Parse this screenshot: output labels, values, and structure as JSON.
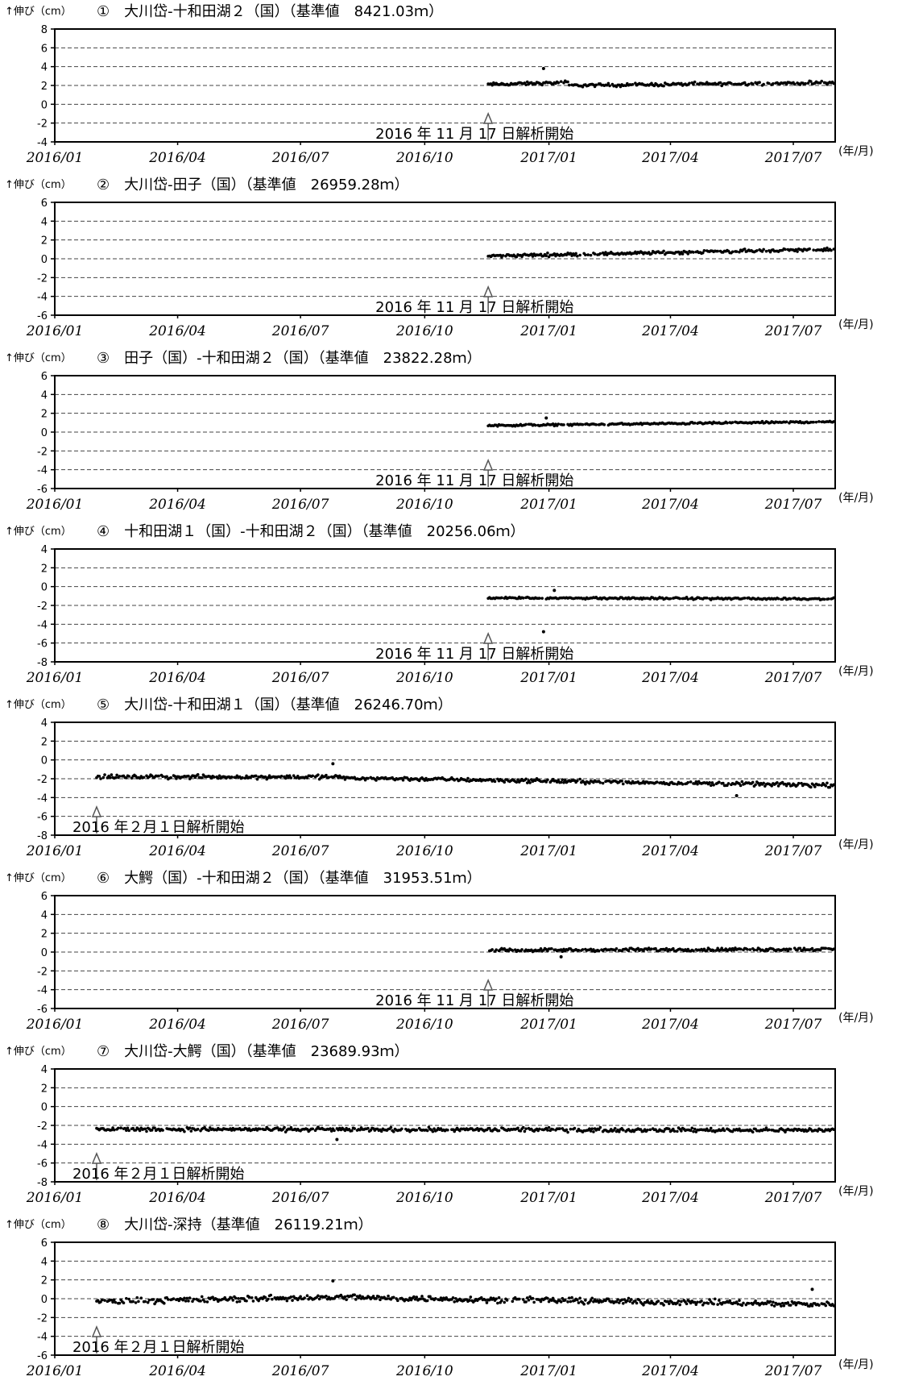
{
  "y_axis_label": "↑伸び（cm）",
  "x_unit_label": "(年/月)",
  "x_tick_labels": [
    "2016/01",
    "2016/04",
    "2016/07",
    "2016/10",
    "2017/01",
    "2017/04",
    "2017/07"
  ],
  "chart_data": [
    {
      "type": "scatter",
      "title": "①　大川岱-十和田湖２（国）（基準値　8421.03ｍ）",
      "ylabel": "↑伸び（cm）",
      "xlabel": "(年/月)",
      "xlim": [
        "2016-01-01",
        "2017-08-01"
      ],
      "ylim": [
        -4,
        8
      ],
      "yticks": [
        -4,
        -2,
        0,
        2,
        4,
        6,
        8
      ],
      "grid": "dashed horizontal",
      "annotation": {
        "text": "2016 年 11 月 17 日解析開始",
        "x": "2016-11-17"
      },
      "series": [
        {
          "start": "2016-11-17",
          "end": "2017-07-31",
          "segments": [
            {
              "from": "2016-11-17",
              "to": "2017-01-15",
              "y_start": 2.1,
              "y_end": 2.3
            },
            {
              "from": "2017-01-15",
              "to": "2017-07-31",
              "y_start": 2.0,
              "y_end": 2.3
            }
          ],
          "scatter": 0.25,
          "outliers": [
            {
              "x": "2016-12-28",
              "y": 3.8
            }
          ]
        }
      ]
    },
    {
      "type": "scatter",
      "title": "②　大川岱-田子（国）（基準値　26959.28ｍ）",
      "ylabel": "↑伸び（cm）",
      "xlabel": "(年/月)",
      "xlim": [
        "2016-01-01",
        "2017-08-01"
      ],
      "ylim": [
        -6,
        6
      ],
      "yticks": [
        -6,
        -4,
        -2,
        0,
        2,
        4,
        6
      ],
      "grid": "dashed horizontal",
      "annotation": {
        "text": "2016 年 11 月 17 日解析開始",
        "x": "2016-11-17"
      },
      "series": [
        {
          "start": "2016-11-17",
          "end": "2017-07-31",
          "segments": [
            {
              "from": "2016-11-17",
              "to": "2017-07-31",
              "y_start": 0.3,
              "y_end": 1.0
            }
          ],
          "scatter": 0.25,
          "outliers": []
        }
      ]
    },
    {
      "type": "scatter",
      "title": "③　田子（国）-十和田湖２（国）（基準値　23822.28ｍ）",
      "ylabel": "↑伸び（cm）",
      "xlabel": "(年/月)",
      "xlim": [
        "2016-01-01",
        "2017-08-01"
      ],
      "ylim": [
        -6,
        6
      ],
      "yticks": [
        -6,
        -4,
        -2,
        0,
        2,
        4,
        6
      ],
      "grid": "dashed horizontal",
      "annotation": {
        "text": "2016 年 11 月 17 日解析開始",
        "x": "2016-11-17"
      },
      "series": [
        {
          "start": "2016-11-17",
          "end": "2017-07-31",
          "segments": [
            {
              "from": "2016-11-17",
              "to": "2017-07-31",
              "y_start": 0.7,
              "y_end": 1.1
            }
          ],
          "scatter": 0.15,
          "outliers": [
            {
              "x": "2016-12-30",
              "y": 1.5
            }
          ]
        }
      ]
    },
    {
      "type": "scatter",
      "title": "④　十和田湖１（国）-十和田湖２（国）（基準値　20256.06ｍ）",
      "ylabel": "↑伸び（cm）",
      "xlabel": "(年/月)",
      "xlim": [
        "2016-01-01",
        "2017-08-01"
      ],
      "ylim": [
        -8,
        4
      ],
      "yticks": [
        -8,
        -6,
        -4,
        -2,
        0,
        2,
        4
      ],
      "grid": "dashed horizontal",
      "annotation": {
        "text": "2016 年 11 月 17 日解析開始",
        "x": "2016-11-17"
      },
      "series": [
        {
          "start": "2016-11-17",
          "end": "2017-07-31",
          "segments": [
            {
              "from": "2016-11-17",
              "to": "2017-07-31",
              "y_start": -1.2,
              "y_end": -1.3
            }
          ],
          "scatter": 0.15,
          "outliers": [
            {
              "x": "2016-12-28",
              "y": -4.8
            },
            {
              "x": "2017-01-05",
              "y": -0.4
            }
          ]
        }
      ]
    },
    {
      "type": "scatter",
      "title": "⑤　大川岱-十和田湖１（国）（基準値　26246.70ｍ）",
      "ylabel": "↑伸び（cm）",
      "xlabel": "(年/月)",
      "xlim": [
        "2016-01-01",
        "2017-08-01"
      ],
      "ylim": [
        -8,
        4
      ],
      "yticks": [
        -8,
        -6,
        -4,
        -2,
        0,
        2,
        4
      ],
      "grid": "dashed horizontal",
      "annotation": {
        "text": "2016 年２月１日解析開始",
        "x": "2016-02-01"
      },
      "series": [
        {
          "start": "2016-02-01",
          "end": "2017-07-31",
          "segments": [
            {
              "from": "2016-02-01",
              "to": "2016-08-01",
              "y_start": -1.8,
              "y_end": -1.8
            },
            {
              "from": "2016-08-01",
              "to": "2017-07-31",
              "y_start": -1.9,
              "y_end": -2.7
            }
          ],
          "scatter": 0.3,
          "outliers": [
            {
              "x": "2016-07-25",
              "y": -0.4
            },
            {
              "x": "2017-05-20",
              "y": -3.8
            }
          ]
        }
      ]
    },
    {
      "type": "scatter",
      "title": "⑥　大鰐（国）-十和田湖２（国）（基準値　31953.51ｍ）",
      "ylabel": "↑伸び（cm）",
      "xlabel": "(年/月)",
      "xlim": [
        "2016-01-01",
        "2017-08-01"
      ],
      "ylim": [
        -6,
        6
      ],
      "yticks": [
        -6,
        -4,
        -2,
        0,
        2,
        4,
        6
      ],
      "grid": "dashed horizontal",
      "annotation": {
        "text": "2016 年 11 月 17 日解析開始",
        "x": "2016-11-17"
      },
      "series": [
        {
          "start": "2016-11-17",
          "end": "2017-07-31",
          "segments": [
            {
              "from": "2016-11-17",
              "to": "2017-07-31",
              "y_start": 0.2,
              "y_end": 0.3
            }
          ],
          "scatter": 0.25,
          "outliers": [
            {
              "x": "2017-01-10",
              "y": -0.5
            }
          ]
        }
      ]
    },
    {
      "type": "scatter",
      "title": "⑦　大川岱-大鰐（国）（基準値　23689.93ｍ）",
      "ylabel": "↑伸び（cm）",
      "xlabel": "(年/月)",
      "xlim": [
        "2016-01-01",
        "2017-08-01"
      ],
      "ylim": [
        -8,
        4
      ],
      "yticks": [
        -8,
        -6,
        -4,
        -2,
        0,
        2,
        4
      ],
      "grid": "dashed horizontal",
      "annotation": {
        "text": "2016 年２月１日解析開始",
        "x": "2016-02-01"
      },
      "series": [
        {
          "start": "2016-02-01",
          "end": "2017-07-31",
          "segments": [
            {
              "from": "2016-02-01",
              "to": "2017-07-31",
              "y_start": -2.4,
              "y_end": -2.5
            }
          ],
          "scatter": 0.3,
          "outliers": [
            {
              "x": "2016-07-28",
              "y": -3.5
            }
          ]
        }
      ]
    },
    {
      "type": "scatter",
      "title": "⑧　大川岱-深持（基準値　26119.21ｍ）",
      "ylabel": "↑伸び（cm）",
      "xlabel": "(年/月)",
      "xlim": [
        "2016-01-01",
        "2017-08-01"
      ],
      "ylim": [
        -6,
        6
      ],
      "yticks": [
        -6,
        -4,
        -2,
        0,
        2,
        4,
        6
      ],
      "grid": "dashed horizontal",
      "annotation": {
        "text": "2016 年２月１日解析開始",
        "x": "2016-02-01"
      },
      "series": [
        {
          "start": "2016-02-01",
          "end": "2017-07-31",
          "segments": [
            {
              "from": "2016-02-01",
              "to": "2016-08-15",
              "y_start": -0.3,
              "y_end": 0.2
            },
            {
              "from": "2016-08-15",
              "to": "2017-07-31",
              "y_start": 0.1,
              "y_end": -0.6
            }
          ],
          "scatter": 0.45,
          "outliers": [
            {
              "x": "2016-07-25",
              "y": 1.9
            },
            {
              "x": "2017-07-15",
              "y": 1.0
            }
          ]
        }
      ]
    }
  ]
}
